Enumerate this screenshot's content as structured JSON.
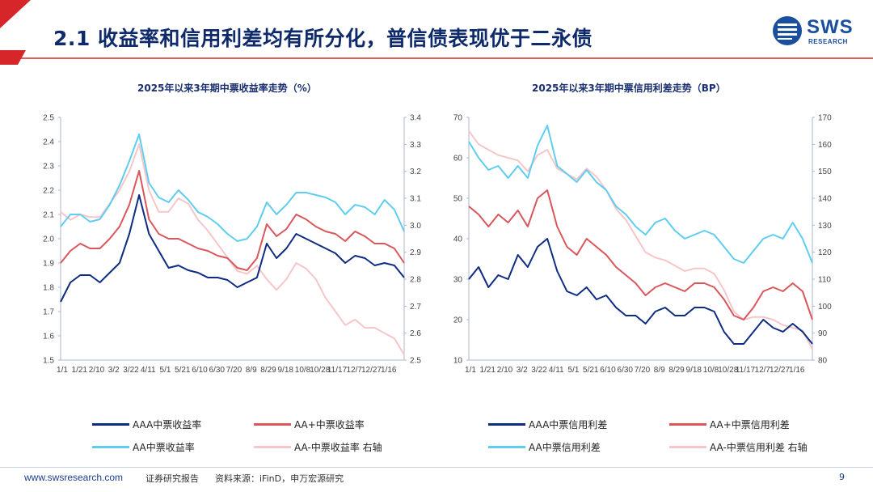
{
  "header": {
    "title": "2.1 收益率和信用利差均有所分化，普信债表现优于二永债",
    "logo_main": "SWS",
    "logo_sub": "RESEARCH"
  },
  "footer": {
    "url": "www.swsresearch.com",
    "report_type": "证券研究报告",
    "source": "资料来源：iFinD，申万宏源研究",
    "page": "9"
  },
  "colors": {
    "accent_red": "#d7262a",
    "navy": "#0e2a6b",
    "aaa": "#0d2c82",
    "aa_plus": "#d9565a",
    "aa": "#5fcdf0",
    "aa_minus": "#f6c6c9"
  },
  "chart_data": [
    {
      "type": "line",
      "title": "2025年以来3年期中票收益率走势（%）",
      "x_tick_labels": [
        "1/1",
        "1/21",
        "2/10",
        "3/2",
        "3/22",
        "4/11",
        "5/1",
        "5/21",
        "6/10",
        "6/30",
        "7/20",
        "8/9",
        "8/29",
        "9/18",
        "10/8",
        "10/28",
        "11/17",
        "12/7",
        "12/27",
        "1/16"
      ],
      "ylim_left": [
        1.5,
        2.5
      ],
      "left_ticks": [
        "2.5",
        "2.4",
        "2.3",
        "2.2",
        "2.1",
        "2.0",
        "1.9",
        "1.8",
        "1.7",
        "1.6",
        "1.5"
      ],
      "ylim_right": [
        2.5,
        3.4
      ],
      "right_ticks": [
        "3.4",
        "3.3",
        "3.2",
        "3.1",
        "3.0",
        "2.9",
        "2.8",
        "2.7",
        "2.6",
        "2.5"
      ],
      "series": [
        {
          "name": "AAA中票收益率",
          "axis": "left",
          "color": "#0d2c82",
          "values": [
            1.74,
            1.82,
            1.85,
            1.85,
            1.82,
            1.86,
            1.9,
            2.02,
            2.18,
            2.02,
            1.95,
            1.88,
            1.89,
            1.87,
            1.86,
            1.84,
            1.84,
            1.83,
            1.8,
            1.82,
            1.84,
            1.98,
            1.92,
            1.96,
            2.02,
            2.0,
            1.98,
            1.96,
            1.94,
            1.9,
            1.93,
            1.92,
            1.89,
            1.9,
            1.89,
            1.84
          ]
        },
        {
          "name": "AA+中票收益率",
          "axis": "left",
          "color": "#d9565a",
          "values": [
            1.9,
            1.95,
            1.98,
            1.96,
            1.96,
            2.0,
            2.05,
            2.14,
            2.28,
            2.08,
            2.02,
            2.0,
            2.0,
            1.98,
            1.96,
            1.95,
            1.93,
            1.92,
            1.88,
            1.87,
            1.92,
            2.06,
            2.01,
            2.04,
            2.1,
            2.08,
            2.05,
            2.03,
            2.02,
            1.99,
            2.03,
            2.01,
            1.98,
            1.98,
            1.96,
            1.9
          ]
        },
        {
          "name": "AA中票收益率",
          "axis": "left",
          "color": "#5fcdf0",
          "values": [
            2.05,
            2.1,
            2.1,
            2.07,
            2.08,
            2.14,
            2.22,
            2.32,
            2.43,
            2.23,
            2.17,
            2.15,
            2.2,
            2.16,
            2.11,
            2.09,
            2.06,
            2.02,
            1.99,
            2.0,
            2.05,
            2.15,
            2.1,
            2.14,
            2.19,
            2.19,
            2.18,
            2.17,
            2.15,
            2.1,
            2.14,
            2.13,
            2.1,
            2.16,
            2.12,
            2.03
          ]
        }
      ],
      "secondary_series": [
        {
          "name": "AA-中票收益率 右轴",
          "axis": "right",
          "color": "#f6c6c9",
          "values": [
            3.05,
            3.02,
            3.04,
            3.03,
            3.03,
            3.08,
            3.13,
            3.2,
            3.3,
            3.13,
            3.05,
            3.05,
            3.1,
            3.08,
            3.02,
            2.98,
            2.93,
            2.88,
            2.83,
            2.82,
            2.85,
            2.8,
            2.76,
            2.8,
            2.86,
            2.84,
            2.8,
            2.73,
            2.68,
            2.63,
            2.65,
            2.62,
            2.62,
            2.6,
            2.58,
            2.52
          ]
        }
      ]
    },
    {
      "type": "line",
      "title": "2025年以来3年期中票信用利差走势（BP）",
      "x_tick_labels": [
        "1/1",
        "1/21",
        "2/10",
        "3/2",
        "3/22",
        "4/11",
        "5/1",
        "5/21",
        "6/10",
        "6/30",
        "7/20",
        "8/9",
        "8/29",
        "9/18",
        "10/8",
        "10/28",
        "11/17",
        "12/7",
        "12/27",
        "1/16"
      ],
      "ylim_left": [
        10,
        70
      ],
      "left_ticks": [
        "70",
        "60",
        "50",
        "40",
        "30",
        "20",
        "10"
      ],
      "ylim_right": [
        80,
        170
      ],
      "right_ticks": [
        "170",
        "160",
        "150",
        "140",
        "130",
        "120",
        "110",
        "100",
        "90",
        "80"
      ],
      "series": [
        {
          "name": "AAA中票信用利差",
          "axis": "left",
          "color": "#0d2c82",
          "values": [
            30,
            33,
            28,
            31,
            30,
            36,
            33,
            38,
            40,
            32,
            27,
            26,
            28,
            25,
            26,
            23,
            21,
            21,
            19,
            22,
            23,
            21,
            21,
            23,
            23,
            22,
            17,
            14,
            14,
            17,
            20,
            18,
            17,
            19,
            17,
            14
          ]
        },
        {
          "name": "AA+中票信用利差",
          "axis": "left",
          "color": "#d9565a",
          "values": [
            48,
            46,
            43,
            46,
            44,
            47,
            43,
            50,
            52,
            43,
            38,
            36,
            40,
            38,
            36,
            33,
            31,
            29,
            26,
            28,
            29,
            28,
            27,
            29,
            29,
            28,
            25,
            21,
            20,
            23,
            27,
            28,
            27,
            29,
            27,
            20
          ]
        },
        {
          "name": "AA中票信用利差",
          "axis": "left",
          "color": "#5fcdf0",
          "values": [
            64,
            60,
            57,
            58,
            55,
            58,
            55,
            63,
            68,
            58,
            56,
            54,
            57,
            54,
            52,
            48,
            46,
            43,
            41,
            44,
            45,
            42,
            40,
            41,
            42,
            41,
            38,
            35,
            34,
            37,
            40,
            41,
            40,
            44,
            40,
            34
          ]
        }
      ],
      "secondary_series": [
        {
          "name": "AA-中票信用利差 右轴",
          "axis": "right",
          "color": "#f6c6c9",
          "values": [
            165,
            160,
            158,
            156,
            155,
            154,
            150,
            156,
            158,
            151,
            149,
            147,
            151,
            148,
            143,
            136,
            132,
            126,
            120,
            118,
            117,
            115,
            113,
            114,
            114,
            112,
            106,
            98,
            95,
            96,
            96,
            95,
            93,
            92,
            91,
            84
          ]
        }
      ]
    }
  ]
}
